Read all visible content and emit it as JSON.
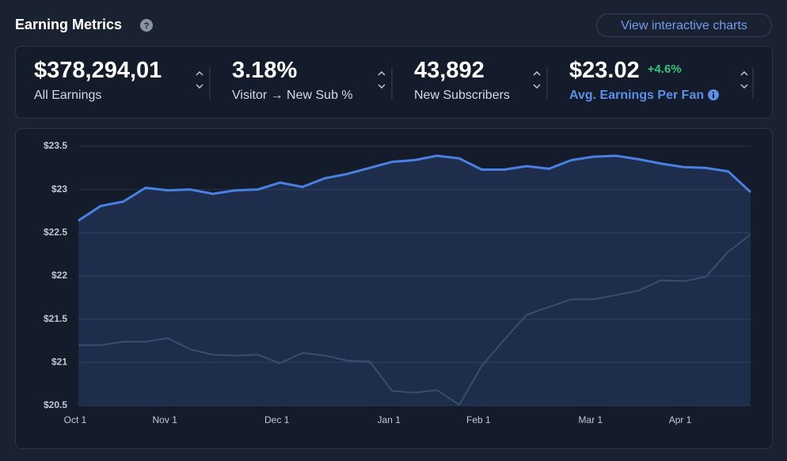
{
  "header": {
    "title": "Earning Metrics",
    "button": "View interactive charts"
  },
  "metrics": [
    {
      "value": "$378,294,01",
      "label": "All Earnings"
    },
    {
      "value": "3.18%",
      "label": "Visitor → New Sub %"
    },
    {
      "value": "43,892",
      "label": "New Subscribers"
    },
    {
      "value": "$23.02",
      "change": "+4.6%",
      "label": "Avg. Earnings Per Fan"
    }
  ],
  "chart_data": {
    "type": "line",
    "categories": [
      "Oct 1",
      null,
      null,
      null,
      "Nov 1",
      null,
      null,
      null,
      null,
      "Dec 1",
      null,
      null,
      null,
      null,
      "Jan 1",
      null,
      null,
      null,
      "Feb 1",
      null,
      null,
      null,
      null,
      "Mar 1",
      null,
      null,
      null,
      "Apr 1",
      null,
      null,
      null
    ],
    "series": [
      {
        "color": "#4a80e3",
        "area": true,
        "values": [
          22.64,
          22.81,
          22.86,
          23.02,
          22.99,
          23.0,
          22.95,
          22.99,
          23.0,
          23.08,
          23.03,
          23.13,
          23.18,
          23.25,
          23.32,
          23.34,
          23.39,
          23.36,
          23.23,
          23.23,
          23.27,
          23.24,
          23.34,
          23.38,
          23.39,
          23.35,
          23.3,
          23.26,
          23.25,
          23.21,
          22.97
        ]
      },
      {
        "color": "#394356",
        "values": [
          21.2,
          21.2,
          21.24,
          21.24,
          21.28,
          21.15,
          21.09,
          21.08,
          21.09,
          20.99,
          21.11,
          21.08,
          21.02,
          21.01,
          20.67,
          20.65,
          20.68,
          20.51,
          20.96,
          21.26,
          21.55,
          21.64,
          21.73,
          21.73,
          21.78,
          21.83,
          21.95,
          21.94,
          21.99,
          22.28,
          22.48
        ]
      }
    ],
    "ylim": [
      20.5,
      23.5
    ],
    "yticks": [
      {
        "value": 20.5,
        "label": "$20.5"
      },
      {
        "value": 21,
        "label": "$21"
      },
      {
        "value": 21.5,
        "label": "$21.5"
      },
      {
        "value": 22,
        "label": "$22"
      },
      {
        "value": 22.5,
        "label": "$22.5"
      },
      {
        "value": 23,
        "label": "$23"
      },
      {
        "value": 23.5,
        "label": "$23.5"
      }
    ],
    "grid": true
  }
}
